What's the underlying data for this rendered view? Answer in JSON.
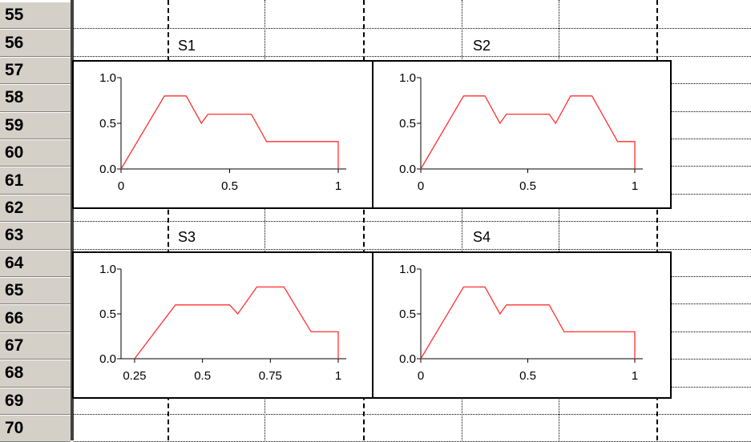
{
  "row_headers": [
    "55",
    "56",
    "57",
    "58",
    "59",
    "60",
    "61",
    "62",
    "63",
    "64",
    "65",
    "66",
    "67",
    "68",
    "69",
    "70"
  ],
  "cell_labels": [
    "S1",
    "S2",
    "S3",
    "S4"
  ],
  "colors": {
    "series": "#ff3030",
    "header_bg": "#d4d0c8"
  },
  "chart_data": [
    {
      "type": "line",
      "title": "",
      "x": [
        0,
        0.2,
        0.3,
        0.37,
        0.4,
        0.6,
        0.67,
        1.0,
        1.0
      ],
      "y": [
        0,
        0.8,
        0.8,
        0.5,
        0.6,
        0.6,
        0.3,
        0.3,
        0
      ],
      "xlim": [
        0,
        1
      ],
      "ylim": [
        0,
        1
      ],
      "xticks": [
        "0",
        "0.5",
        "1"
      ],
      "xtick_values": [
        0,
        0.5,
        1
      ],
      "yticks": [
        "0.0",
        "0.5",
        "1.0"
      ],
      "ytick_values": [
        0,
        0.5,
        1
      ]
    },
    {
      "type": "line",
      "title": "",
      "x": [
        0,
        0.2,
        0.3,
        0.37,
        0.4,
        0.6,
        0.63,
        0.7,
        0.8,
        0.92,
        1.0,
        1.0
      ],
      "y": [
        0,
        0.8,
        0.8,
        0.5,
        0.6,
        0.6,
        0.5,
        0.8,
        0.8,
        0.3,
        0.3,
        0
      ],
      "xlim": [
        0,
        1
      ],
      "ylim": [
        0,
        1
      ],
      "xticks": [
        "0",
        "0.5",
        "1"
      ],
      "xtick_values": [
        0,
        0.5,
        1
      ],
      "yticks": [
        "0.0",
        "0.5",
        "1.0"
      ],
      "ytick_values": [
        0,
        0.5,
        1
      ]
    },
    {
      "type": "line",
      "title": "",
      "x": [
        0.25,
        0.4,
        0.6,
        0.63,
        0.7,
        0.8,
        0.9,
        1.0,
        1.0
      ],
      "y": [
        0,
        0.6,
        0.6,
        0.5,
        0.8,
        0.8,
        0.3,
        0.3,
        0
      ],
      "xlim": [
        0.2,
        1
      ],
      "ylim": [
        0,
        1
      ],
      "xticks": [
        "0.25",
        "0.5",
        "0.75",
        "1"
      ],
      "xtick_values": [
        0.25,
        0.5,
        0.75,
        1
      ],
      "yticks": [
        "0.0",
        "0.5",
        "1.0"
      ],
      "ytick_values": [
        0,
        0.5,
        1
      ]
    },
    {
      "type": "line",
      "title": "",
      "x": [
        0,
        0.2,
        0.3,
        0.37,
        0.4,
        0.6,
        0.67,
        1.0,
        1.0
      ],
      "y": [
        0,
        0.8,
        0.8,
        0.5,
        0.6,
        0.6,
        0.3,
        0.3,
        0
      ],
      "xlim": [
        0,
        1
      ],
      "ylim": [
        0,
        1
      ],
      "xticks": [
        "0",
        "0.5",
        "1"
      ],
      "xtick_values": [
        0,
        0.5,
        1
      ],
      "yticks": [
        "0.0",
        "0.5",
        "1.0"
      ],
      "ytick_values": [
        0,
        0.5,
        1
      ]
    }
  ]
}
